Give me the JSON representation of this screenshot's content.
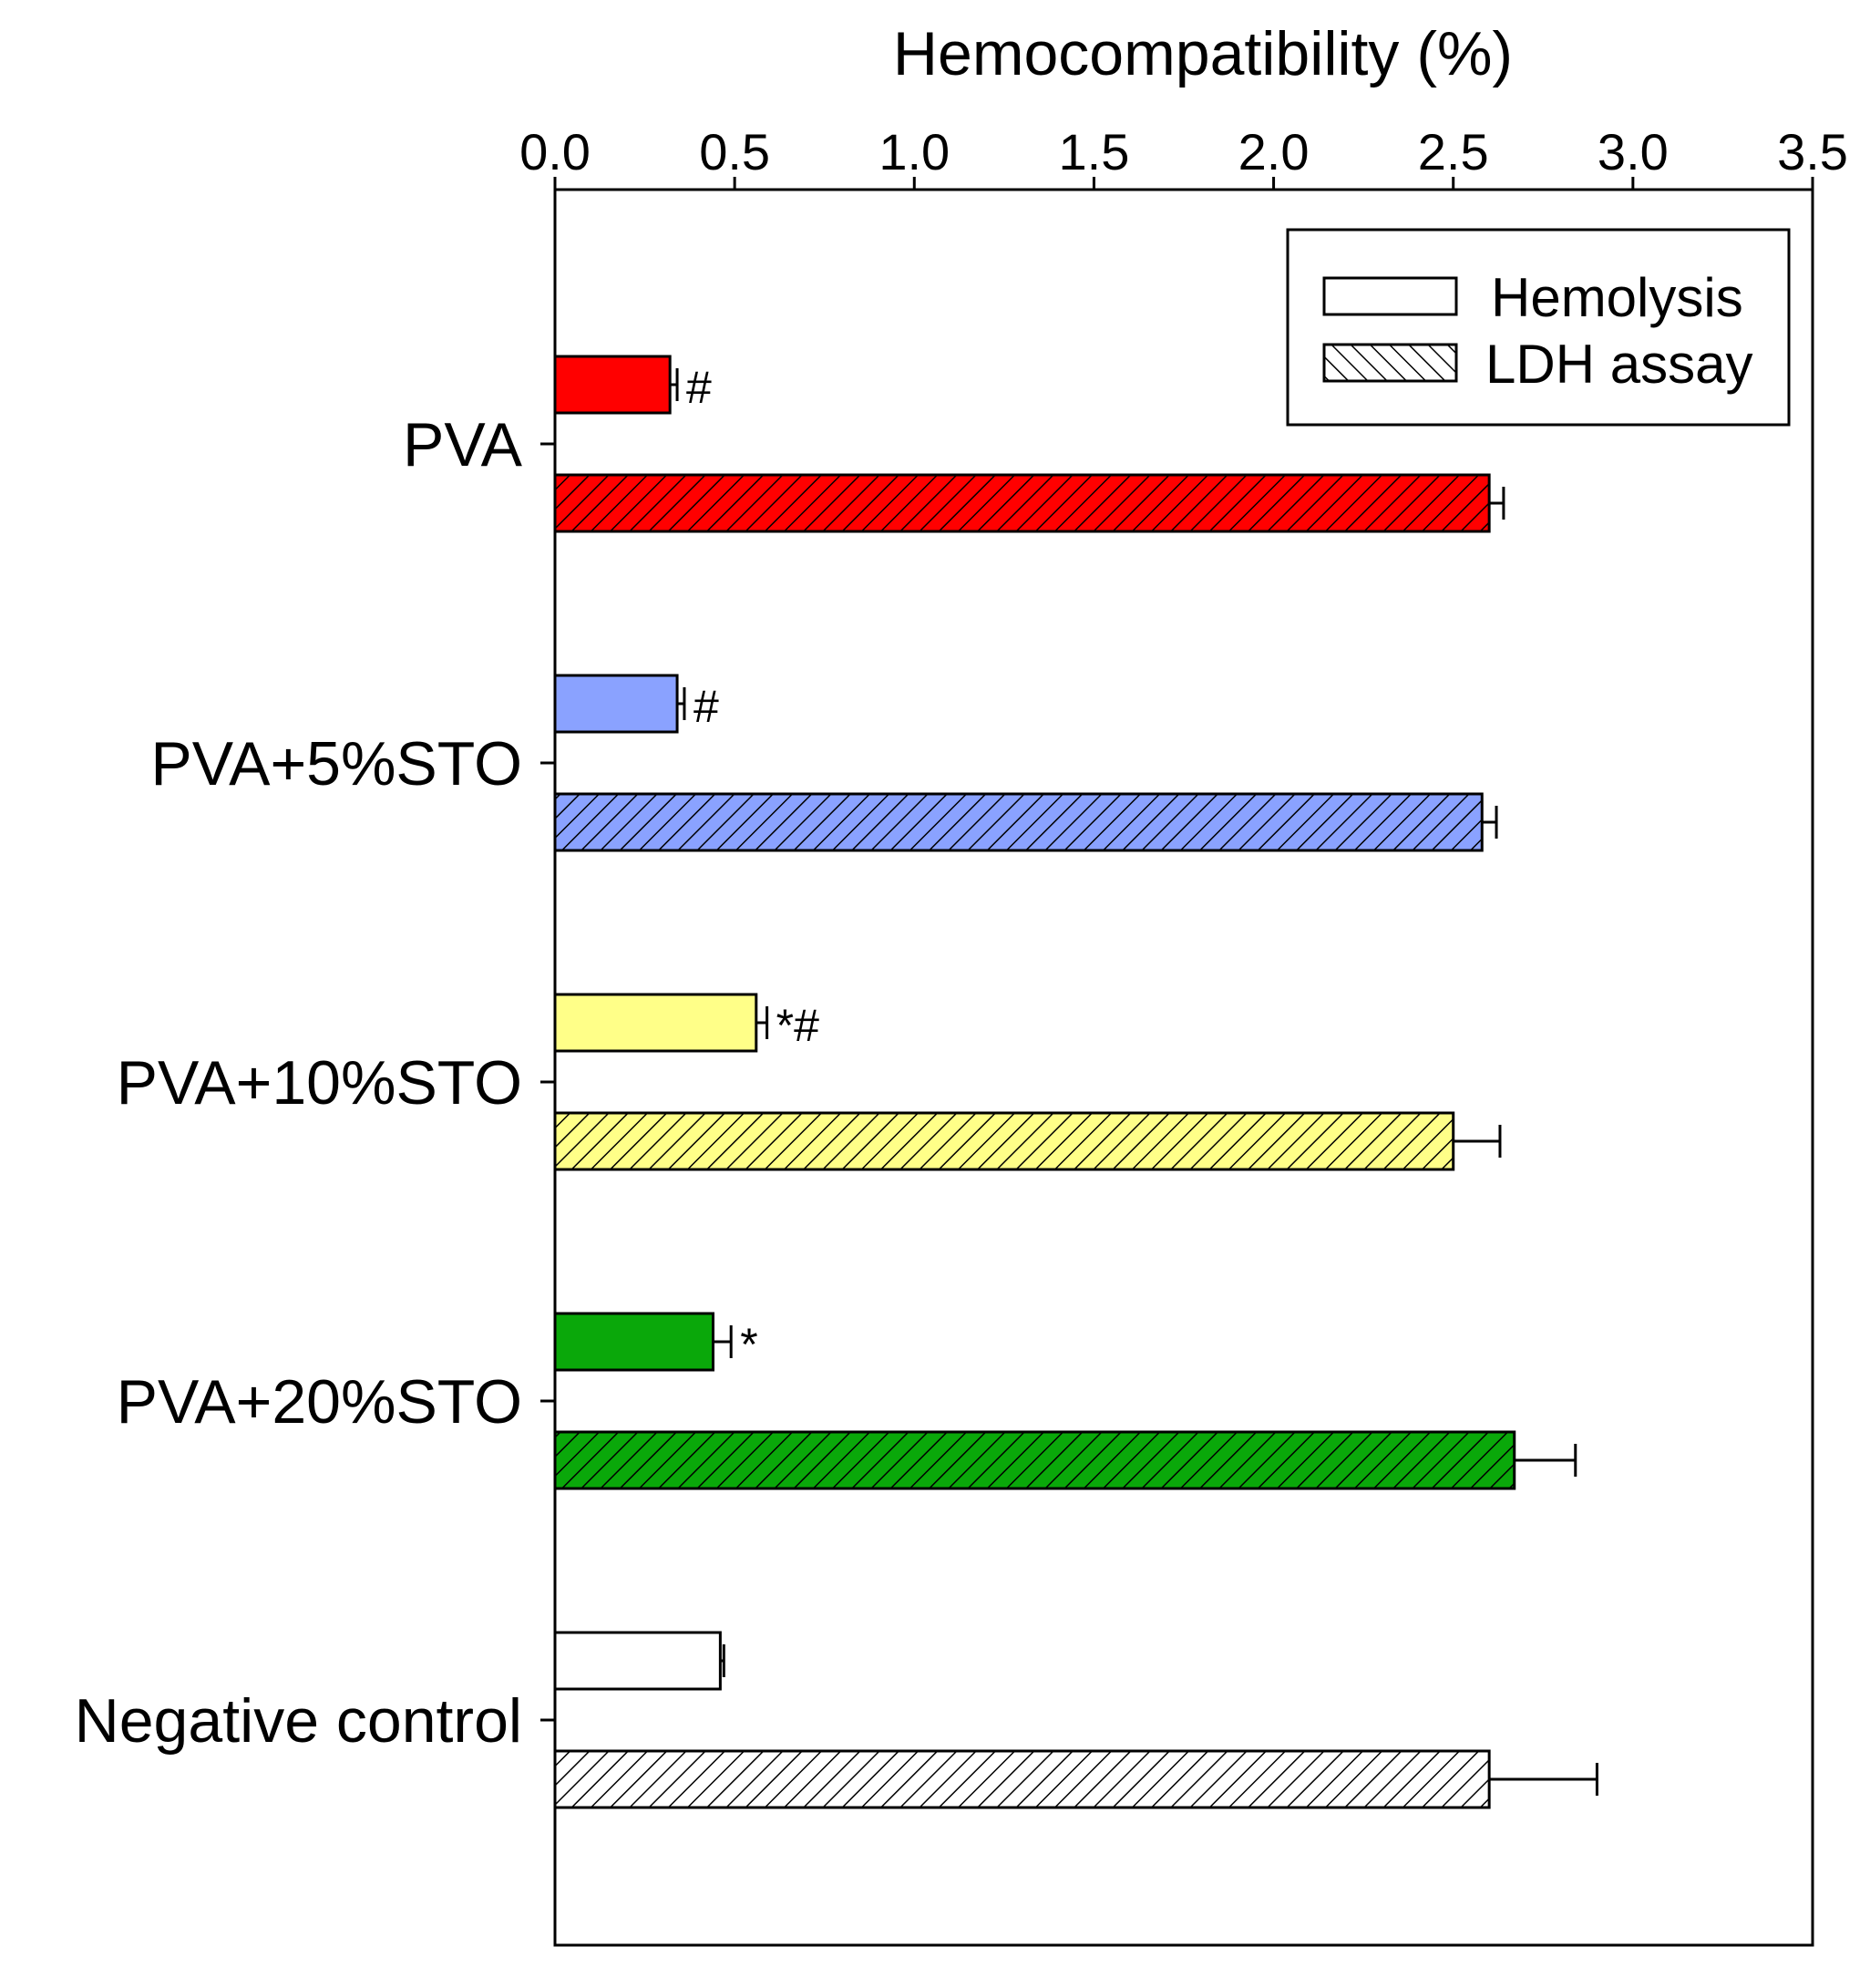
{
  "chart_data": {
    "type": "bar",
    "orientation": "horizontal",
    "xlabel": "Hemocompatibility (%)",
    "xlim": [
      0,
      3.5
    ],
    "x_ticks": [
      "0.0",
      "0.5",
      "1.0",
      "1.5",
      "2.0",
      "2.5",
      "3.0",
      "3.5"
    ],
    "x_axis_position": "top",
    "grid": false,
    "legend_position": "top-right",
    "categories": [
      "PVA",
      "PVA+5%STO",
      "PVA+10%STO",
      "PVA+20%STO",
      "Negative control"
    ],
    "category_colors": [
      "#ff0000",
      "#8aa2ff",
      "#ffff88",
      "#0aa80a",
      "#ffffff"
    ],
    "series": [
      {
        "name": "Hemolysis",
        "pattern": "solid",
        "values": [
          0.32,
          0.34,
          0.56,
          0.44,
          0.46
        ],
        "errors": [
          0.02,
          0.02,
          0.03,
          0.05,
          0.01
        ],
        "annotations": [
          "#",
          "#",
          "*#",
          "*",
          ""
        ]
      },
      {
        "name": "LDH assay",
        "pattern": "hatched",
        "values": [
          2.6,
          2.58,
          2.5,
          2.67,
          2.6
        ],
        "errors": [
          0.04,
          0.04,
          0.13,
          0.17,
          0.3
        ],
        "annotations": [
          "",
          "",
          "",
          "",
          ""
        ]
      }
    ]
  }
}
